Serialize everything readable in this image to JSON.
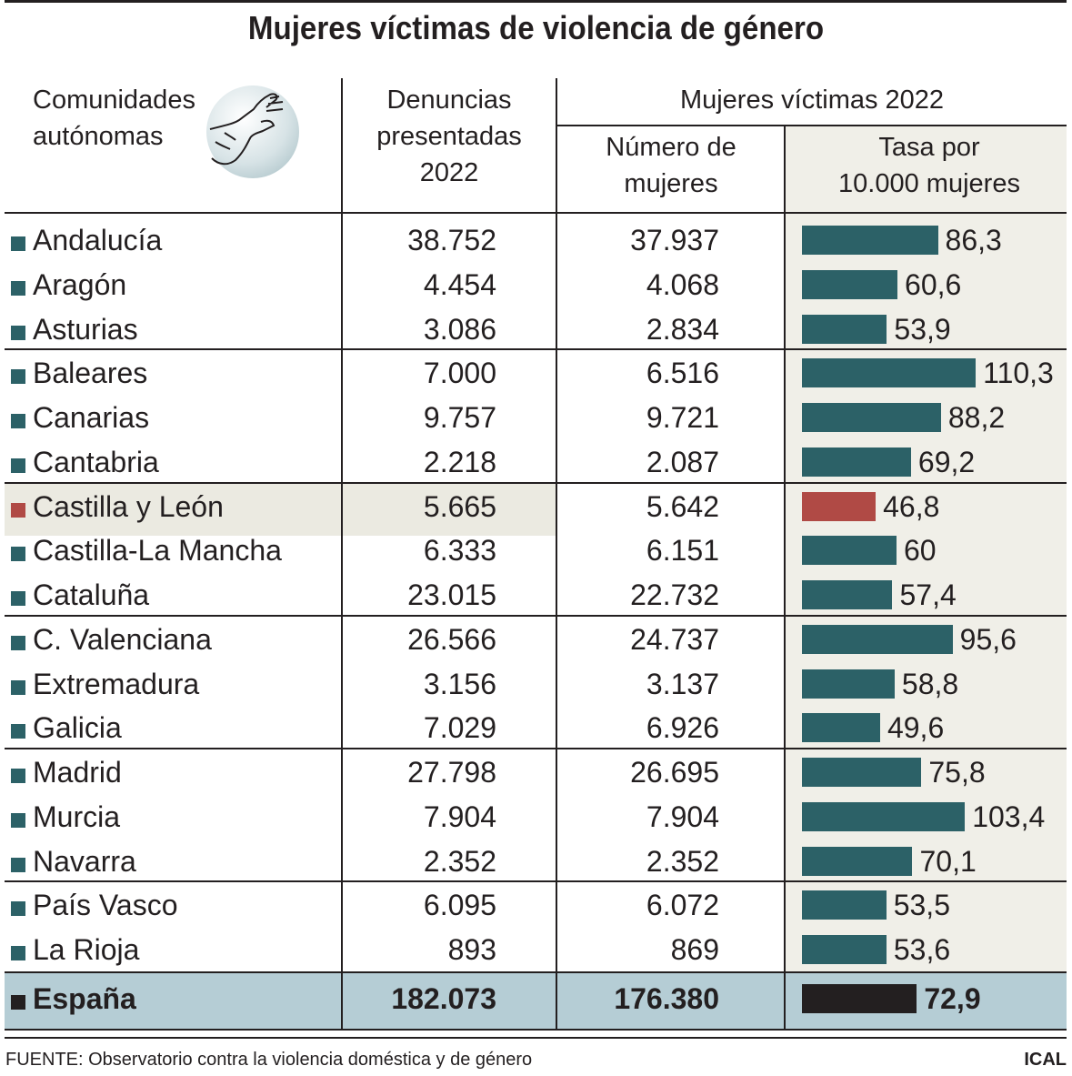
{
  "title": "Mujeres víctimas de violencia de género",
  "header": {
    "col_region": "Comunidades autónomas",
    "col_region_line1": "Comunidades",
    "col_region_line2": "autónomas",
    "col_denuncias_line1": "Denuncias",
    "col_denuncias_line2": "presentadas",
    "col_denuncias_line3": "2022",
    "group_label": "Mujeres víctimas 2022",
    "col_numero_line1": "Número de",
    "col_numero_line2": "mujeres",
    "col_tasa_line1": "Tasa por",
    "col_tasa_line2": "10.000 mujeres",
    "icon": "hand-stop-icon"
  },
  "colors": {
    "bar": "#2c6167",
    "highlight_bar": "#b04a45",
    "total_bar": "#231f20",
    "rate_column_bg": "#f0efe8",
    "highlight_row_bg": "#ebeae1",
    "total_row_bg": "#b5cdd5"
  },
  "chart_data": {
    "type": "table",
    "title": "Mujeres víctimas de violencia de género",
    "columns": [
      "Comunidades autónomas",
      "Denuncias presentadas 2022",
      "Número de mujeres",
      "Tasa por 10.000 mujeres"
    ],
    "rows": [
      {
        "region": "Andalucía",
        "denuncias": "38.752",
        "mujeres": "37.937",
        "tasa": "86,3",
        "value": 86.3
      },
      {
        "region": "Aragón",
        "denuncias": "4.454",
        "mujeres": "4.068",
        "tasa": "60,6",
        "value": 60.6
      },
      {
        "region": "Asturias",
        "denuncias": "3.086",
        "mujeres": "2.834",
        "tasa": "53,9",
        "value": 53.9
      },
      {
        "region": "Baleares",
        "denuncias": "7.000",
        "mujeres": "6.516",
        "tasa": "110,3",
        "value": 110.3
      },
      {
        "region": "Canarias",
        "denuncias": "9.757",
        "mujeres": "9.721",
        "tasa": "88,2",
        "value": 88.2
      },
      {
        "region": "Cantabria",
        "denuncias": "2.218",
        "mujeres": "2.087",
        "tasa": "69,2",
        "value": 69.2
      },
      {
        "region": "Castilla y León",
        "denuncias": "5.665",
        "mujeres": "5.642",
        "tasa": "46,8",
        "value": 46.8,
        "highlight": true
      },
      {
        "region": "Castilla-La Mancha",
        "denuncias": "6.333",
        "mujeres": "6.151",
        "tasa": "60",
        "value": 60
      },
      {
        "region": "Cataluña",
        "denuncias": "23.015",
        "mujeres": "22.732",
        "tasa": "57,4",
        "value": 57.4
      },
      {
        "region": "C. Valenciana",
        "denuncias": "26.566",
        "mujeres": "24.737",
        "tasa": "95,6",
        "value": 95.6
      },
      {
        "region": "Extremadura",
        "denuncias": "3.156",
        "mujeres": "3.137",
        "tasa": "58,8",
        "value": 58.8
      },
      {
        "region": "Galicia",
        "denuncias": "7.029",
        "mujeres": "6.926",
        "tasa": "49,6",
        "value": 49.6
      },
      {
        "region": "Madrid",
        "denuncias": "27.798",
        "mujeres": "26.695",
        "tasa": "75,8",
        "value": 75.8
      },
      {
        "region": "Murcia",
        "denuncias": "7.904",
        "mujeres": "7.904",
        "tasa": "103,4",
        "value": 103.4
      },
      {
        "region": "Navarra",
        "denuncias": "2.352",
        "mujeres": "2.352",
        "tasa": "70,1",
        "value": 70.1
      },
      {
        "region": "País Vasco",
        "denuncias": "6.095",
        "mujeres": "6.072",
        "tasa": "53,5",
        "value": 53.5
      },
      {
        "region": "La Rioja",
        "denuncias": "893",
        "mujeres": "869",
        "tasa": "53,6",
        "value": 53.6
      }
    ],
    "total": {
      "region": "España",
      "denuncias": "182.073",
      "mujeres": "176.380",
      "tasa": "72,9",
      "value": 72.9
    }
  },
  "footer": {
    "source": "FUENTE: Observatorio contra la violencia doméstica y de género",
    "credit": "ICAL"
  }
}
